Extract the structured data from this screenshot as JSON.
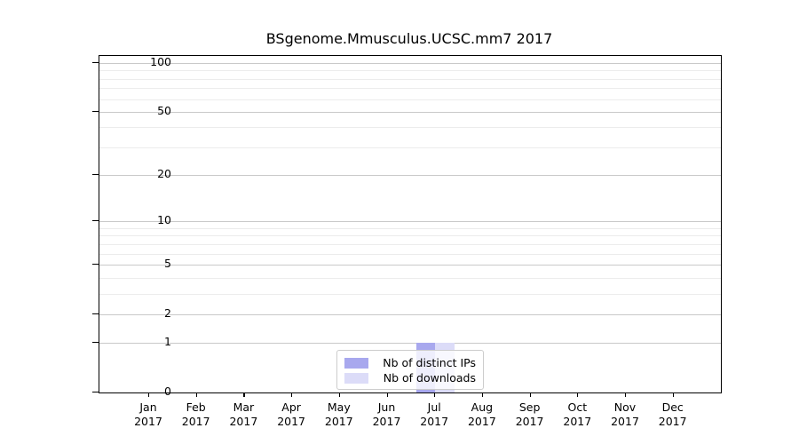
{
  "chart_data": {
    "type": "bar",
    "title": "BSgenome.Mmusculus.UCSC.mm7 2017",
    "categories": [
      "Jan",
      "Feb",
      "Mar",
      "Apr",
      "May",
      "Jun",
      "Jul",
      "Aug",
      "Sep",
      "Oct",
      "Nov",
      "Dec"
    ],
    "category_year": "2017",
    "series": [
      {
        "name": "Nb of distinct IPs",
        "color": "#a8a8ee",
        "values": [
          0,
          0,
          0,
          0,
          0,
          0,
          1,
          0,
          0,
          0,
          0,
          0
        ]
      },
      {
        "name": "Nb of downloads",
        "color": "#dcdcf8",
        "values": [
          0,
          0,
          0,
          0,
          0,
          0,
          1,
          0,
          0,
          0,
          0,
          0
        ]
      }
    ],
    "xlabel": "",
    "ylabel": "",
    "yscale": "log1p",
    "ylim": [
      0,
      110
    ],
    "yticks": [
      0,
      1,
      2,
      5,
      10,
      20,
      50,
      100
    ],
    "minor_gridlines": [
      3,
      4,
      6,
      7,
      8,
      9,
      30,
      40,
      60,
      70,
      80,
      90
    ],
    "grid": "horizontal",
    "legend_position": "lower center"
  }
}
